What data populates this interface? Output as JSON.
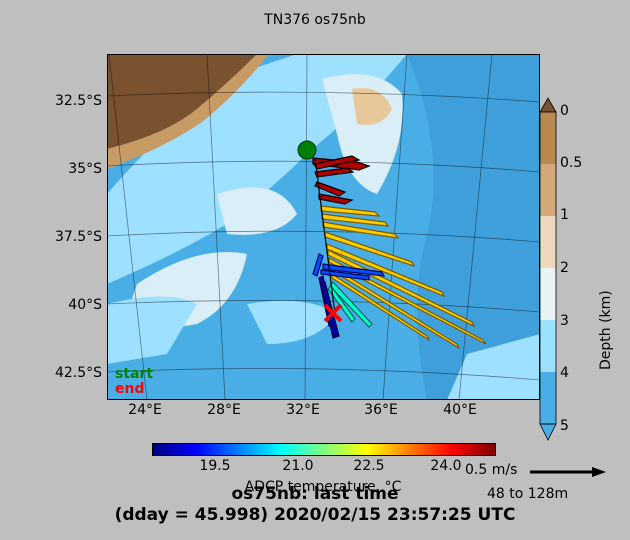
{
  "title": "TN376 os75nb",
  "lat_labels": [
    "32.5°S",
    "35°S",
    "37.5°S",
    "40°S",
    "42.5°S"
  ],
  "lon_labels": [
    "24°E",
    "28°E",
    "32°E",
    "36°E",
    "40°E"
  ],
  "depth_colorbar": {
    "label": "Depth (km)",
    "ticks": [
      "0",
      "0.5",
      "1",
      "2",
      "3",
      "4",
      "5"
    ]
  },
  "legend": {
    "start": "start",
    "end": "end"
  },
  "temp_colorbar": {
    "ticks": [
      "19.5",
      "21.0",
      "22.5",
      "24.0"
    ],
    "label": "ADCP temperature, °C"
  },
  "vector_scale": {
    "label": "0.5 m/s",
    "depth_range": "48 to 128m"
  },
  "footer": {
    "line1": "os75nb: last time",
    "line2": "(dday = 45.998) 2020/02/15 23:57:25 UTC"
  },
  "colors": {
    "land": "#7a5230",
    "deep_ocean": "#4aaee6",
    "shelf": "#9ee0ff",
    "start_marker": "#008000",
    "end_marker": "#ff0000"
  }
}
